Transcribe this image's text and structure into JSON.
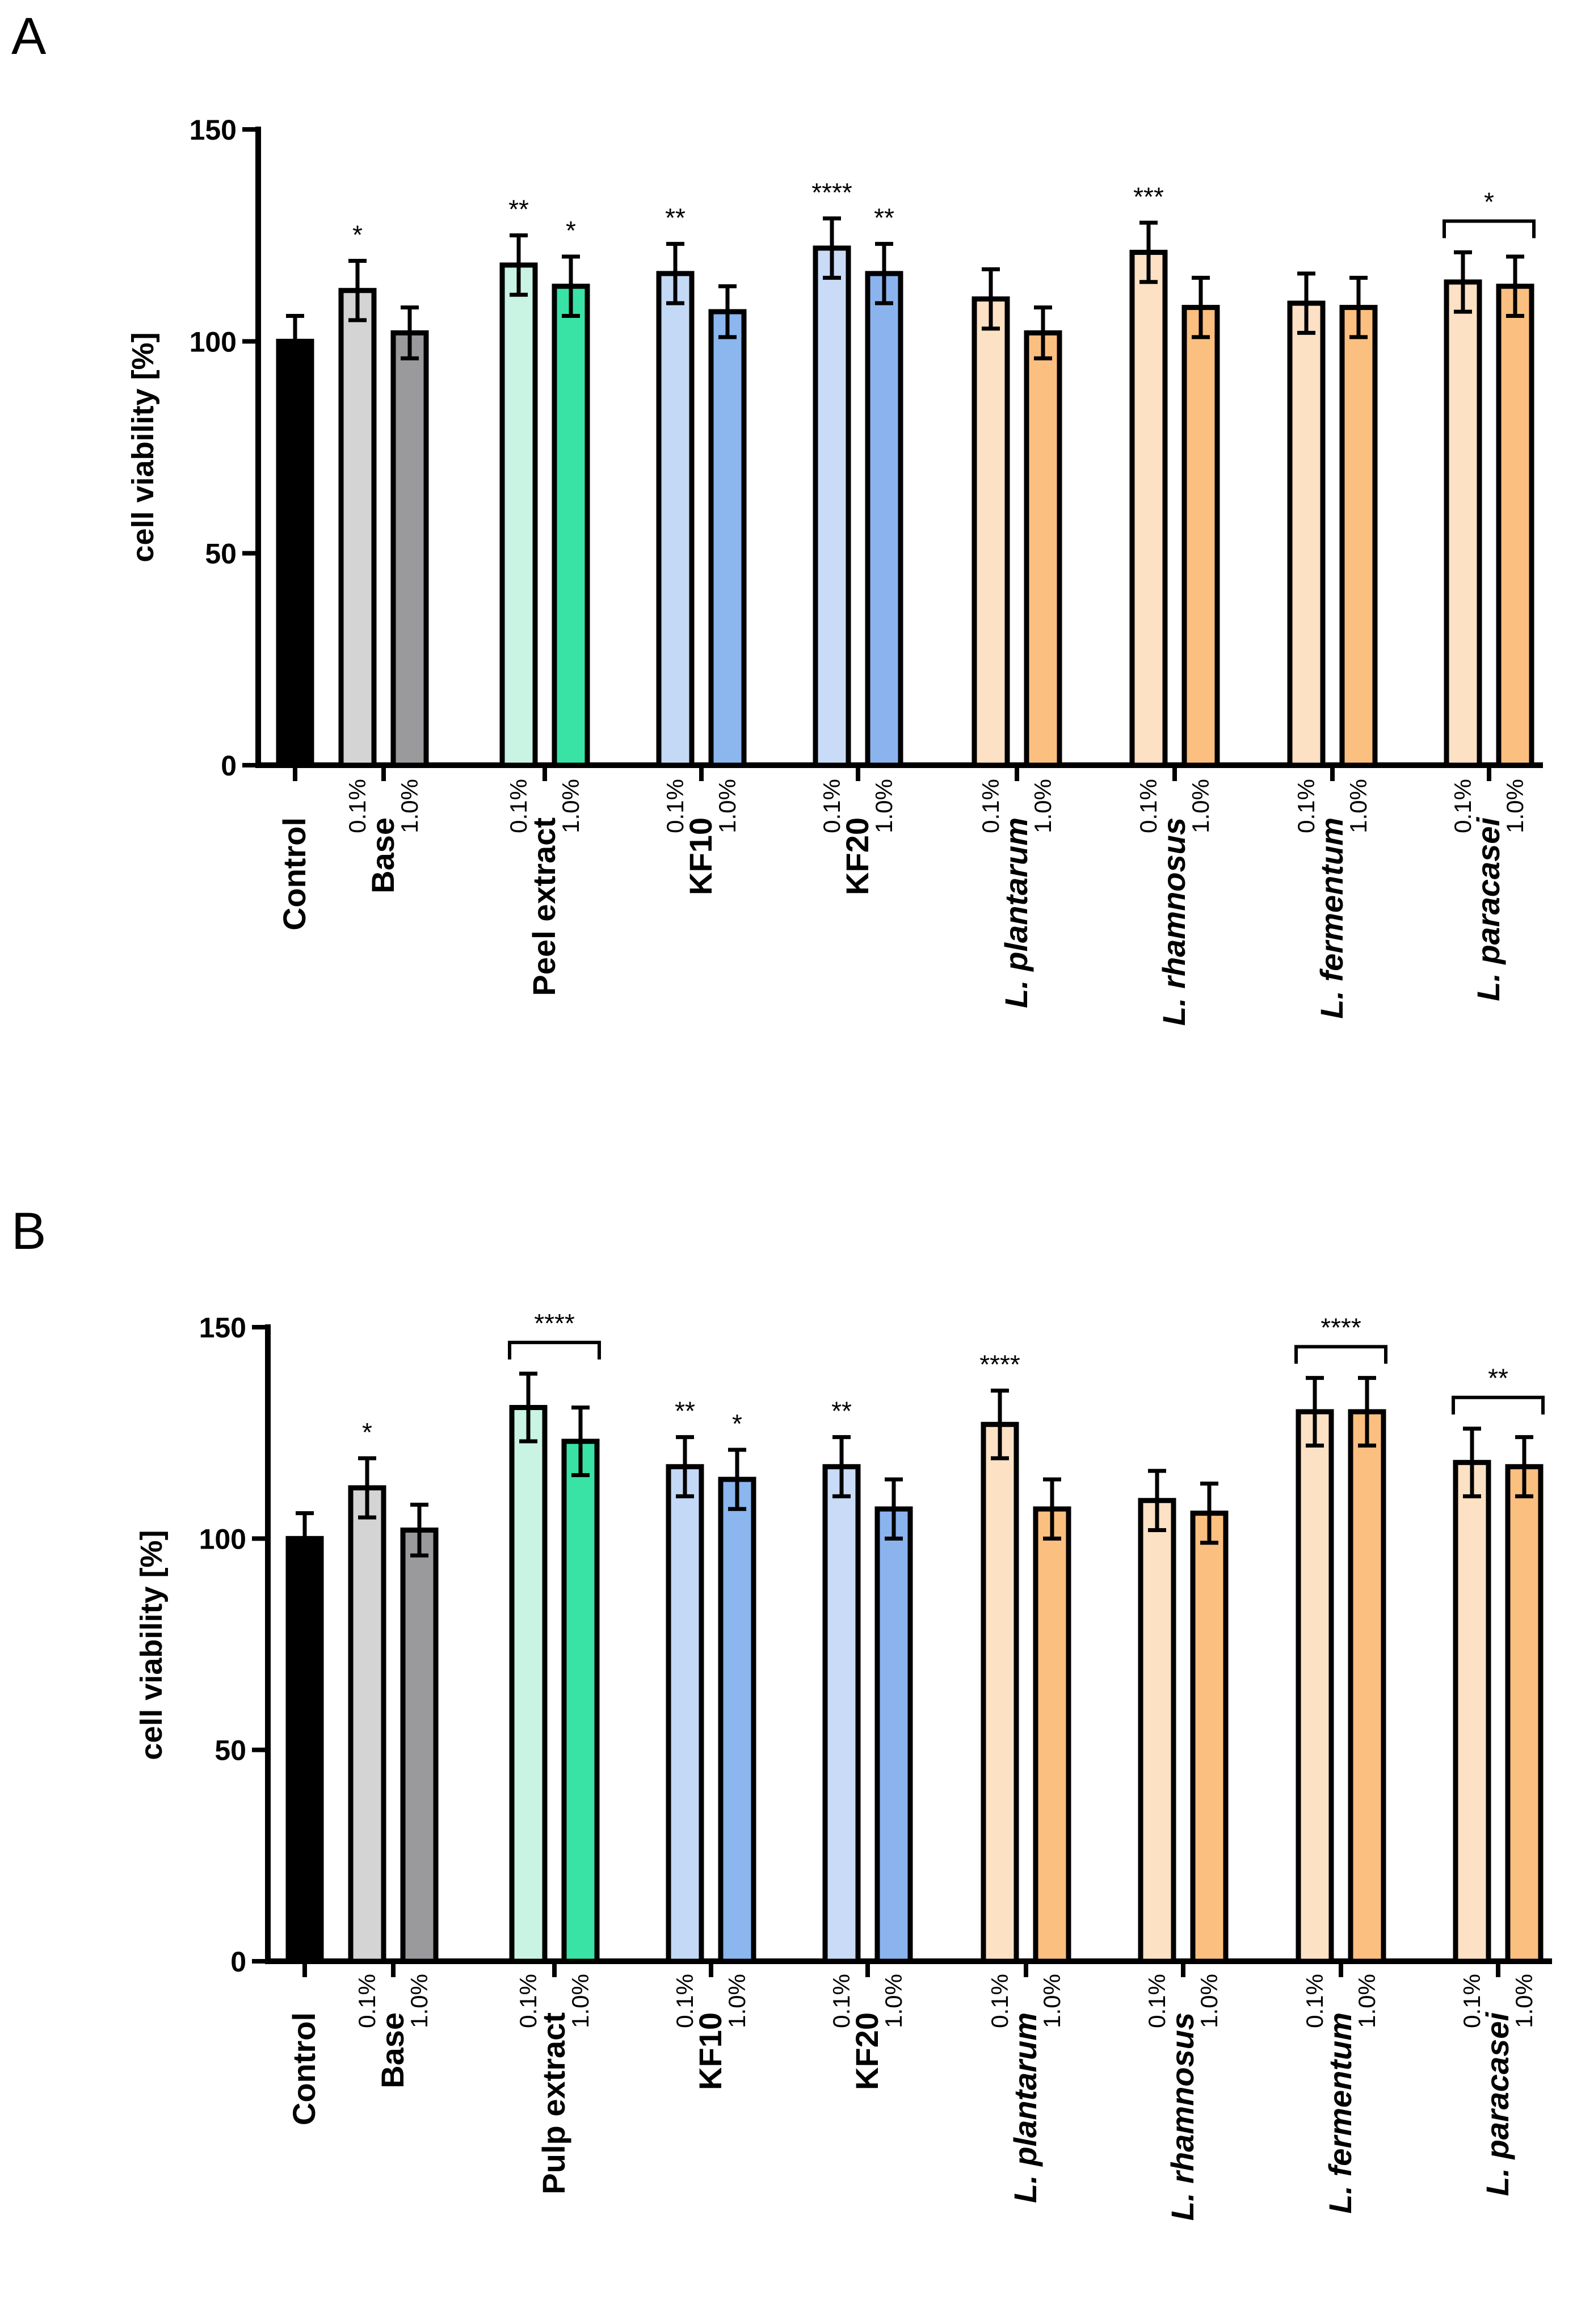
{
  "colors": {
    "control": "#000000",
    "base_low": "#d4d4d4",
    "base_high": "#9a9a9c",
    "extract_low": "#c9f3e3",
    "extract_high": "#39e3a6",
    "kf10_low": "#c4d9f5",
    "kf10_high": "#8bb6ee",
    "kf20_low": "#c9dbf6",
    "kf20_high": "#8bb4ef",
    "lacto_low": "#fde1c4",
    "lacto_high": "#fbbf80"
  },
  "chart_data": [
    {
      "panel": "A",
      "type": "bar",
      "ylabel": "cell viability [%]",
      "ylim": [
        0,
        150
      ],
      "yticks": [
        0,
        50,
        100,
        150
      ],
      "groups": [
        {
          "label": "Control",
          "italic": false,
          "bars": [
            {
              "sub": "",
              "value": 100,
              "err": 6,
              "color": "control",
              "sig": ""
            }
          ]
        },
        {
          "label": "Base",
          "italic": false,
          "bars": [
            {
              "sub": "0.1%",
              "value": 112,
              "err": 7,
              "color": "base_low",
              "sig": "*"
            },
            {
              "sub": "1.0%",
              "value": 102,
              "err": 6,
              "color": "base_high",
              "sig": ""
            }
          ]
        },
        {
          "label": "Peel extract",
          "italic": false,
          "bars": [
            {
              "sub": "0.1%",
              "value": 118,
              "err": 7,
              "color": "extract_low",
              "sig": "**"
            },
            {
              "sub": "1.0%",
              "value": 113,
              "err": 7,
              "color": "extract_high",
              "sig": "*"
            }
          ]
        },
        {
          "label": "KF10",
          "italic": false,
          "bars": [
            {
              "sub": "0.1%",
              "value": 116,
              "err": 7,
              "color": "kf10_low",
              "sig": "**"
            },
            {
              "sub": "1.0%",
              "value": 107,
              "err": 6,
              "color": "kf10_high",
              "sig": ""
            }
          ]
        },
        {
          "label": "KF20",
          "italic": false,
          "bars": [
            {
              "sub": "0.1%",
              "value": 122,
              "err": 7,
              "color": "kf20_low",
              "sig": "****"
            },
            {
              "sub": "1.0%",
              "value": 116,
              "err": 7,
              "color": "kf20_high",
              "sig": "**"
            }
          ]
        },
        {
          "label": "L. plantarum",
          "italic": true,
          "bars": [
            {
              "sub": "0.1%",
              "value": 110,
              "err": 7,
              "color": "lacto_low",
              "sig": ""
            },
            {
              "sub": "1.0%",
              "value": 102,
              "err": 6,
              "color": "lacto_high",
              "sig": ""
            }
          ]
        },
        {
          "label": "L. rhamnosus",
          "italic": true,
          "bars": [
            {
              "sub": "0.1%",
              "value": 121,
              "err": 7,
              "color": "lacto_low",
              "sig": "***"
            },
            {
              "sub": "1.0%",
              "value": 108,
              "err": 7,
              "color": "lacto_high",
              "sig": ""
            }
          ]
        },
        {
          "label": "L. fermentum",
          "italic": true,
          "bars": [
            {
              "sub": "0.1%",
              "value": 109,
              "err": 7,
              "color": "lacto_low",
              "sig": ""
            },
            {
              "sub": "1.0%",
              "value": 108,
              "err": 7,
              "color": "lacto_high",
              "sig": ""
            }
          ]
        },
        {
          "label": "L. paracasei",
          "italic": true,
          "bracket": "*",
          "bars": [
            {
              "sub": "0.1%",
              "value": 114,
              "err": 7,
              "color": "lacto_low",
              "sig": ""
            },
            {
              "sub": "1.0%",
              "value": 113,
              "err": 7,
              "color": "lacto_high",
              "sig": ""
            }
          ]
        }
      ]
    },
    {
      "panel": "B",
      "type": "bar",
      "ylabel": "cell viability [%]",
      "ylim": [
        0,
        150
      ],
      "yticks": [
        0,
        50,
        100,
        150
      ],
      "groups": [
        {
          "label": "Control",
          "italic": false,
          "bars": [
            {
              "sub": "",
              "value": 100,
              "err": 6,
              "color": "control",
              "sig": ""
            }
          ]
        },
        {
          "label": "Base",
          "italic": false,
          "bars": [
            {
              "sub": "0.1%",
              "value": 112,
              "err": 7,
              "color": "base_low",
              "sig": "*"
            },
            {
              "sub": "1.0%",
              "value": 102,
              "err": 6,
              "color": "base_high",
              "sig": ""
            }
          ]
        },
        {
          "label": "Pulp extract",
          "italic": false,
          "bracket": "****",
          "bars": [
            {
              "sub": "0.1%",
              "value": 131,
              "err": 8,
              "color": "extract_low",
              "sig": ""
            },
            {
              "sub": "1.0%",
              "value": 123,
              "err": 8,
              "color": "extract_high",
              "sig": ""
            }
          ]
        },
        {
          "label": "KF10",
          "italic": false,
          "bars": [
            {
              "sub": "0.1%",
              "value": 117,
              "err": 7,
              "color": "kf10_low",
              "sig": "**"
            },
            {
              "sub": "1.0%",
              "value": 114,
              "err": 7,
              "color": "kf10_high",
              "sig": "*"
            }
          ]
        },
        {
          "label": "KF20",
          "italic": false,
          "bars": [
            {
              "sub": "0.1%",
              "value": 117,
              "err": 7,
              "color": "kf20_low",
              "sig": "**"
            },
            {
              "sub": "1.0%",
              "value": 107,
              "err": 7,
              "color": "kf20_high",
              "sig": ""
            }
          ]
        },
        {
          "label": "L. plantarum",
          "italic": true,
          "bars": [
            {
              "sub": "0.1%",
              "value": 127,
              "err": 8,
              "color": "lacto_low",
              "sig": "****"
            },
            {
              "sub": "1.0%",
              "value": 107,
              "err": 7,
              "color": "lacto_high",
              "sig": ""
            }
          ]
        },
        {
          "label": "L. rhamnosus",
          "italic": true,
          "bars": [
            {
              "sub": "0.1%",
              "value": 109,
              "err": 7,
              "color": "lacto_low",
              "sig": ""
            },
            {
              "sub": "1.0%",
              "value": 106,
              "err": 7,
              "color": "lacto_high",
              "sig": ""
            }
          ]
        },
        {
          "label": "L. fermentum",
          "italic": true,
          "bracket": "****",
          "bars": [
            {
              "sub": "0.1%",
              "value": 130,
              "err": 8,
              "color": "lacto_low",
              "sig": ""
            },
            {
              "sub": "1.0%",
              "value": 130,
              "err": 8,
              "color": "lacto_high",
              "sig": ""
            }
          ]
        },
        {
          "label": "L. paracasei",
          "italic": true,
          "bracket": "**",
          "bars": [
            {
              "sub": "0.1%",
              "value": 118,
              "err": 8,
              "color": "lacto_low",
              "sig": ""
            },
            {
              "sub": "1.0%",
              "value": 117,
              "err": 7,
              "color": "lacto_high",
              "sig": ""
            }
          ]
        }
      ]
    }
  ]
}
